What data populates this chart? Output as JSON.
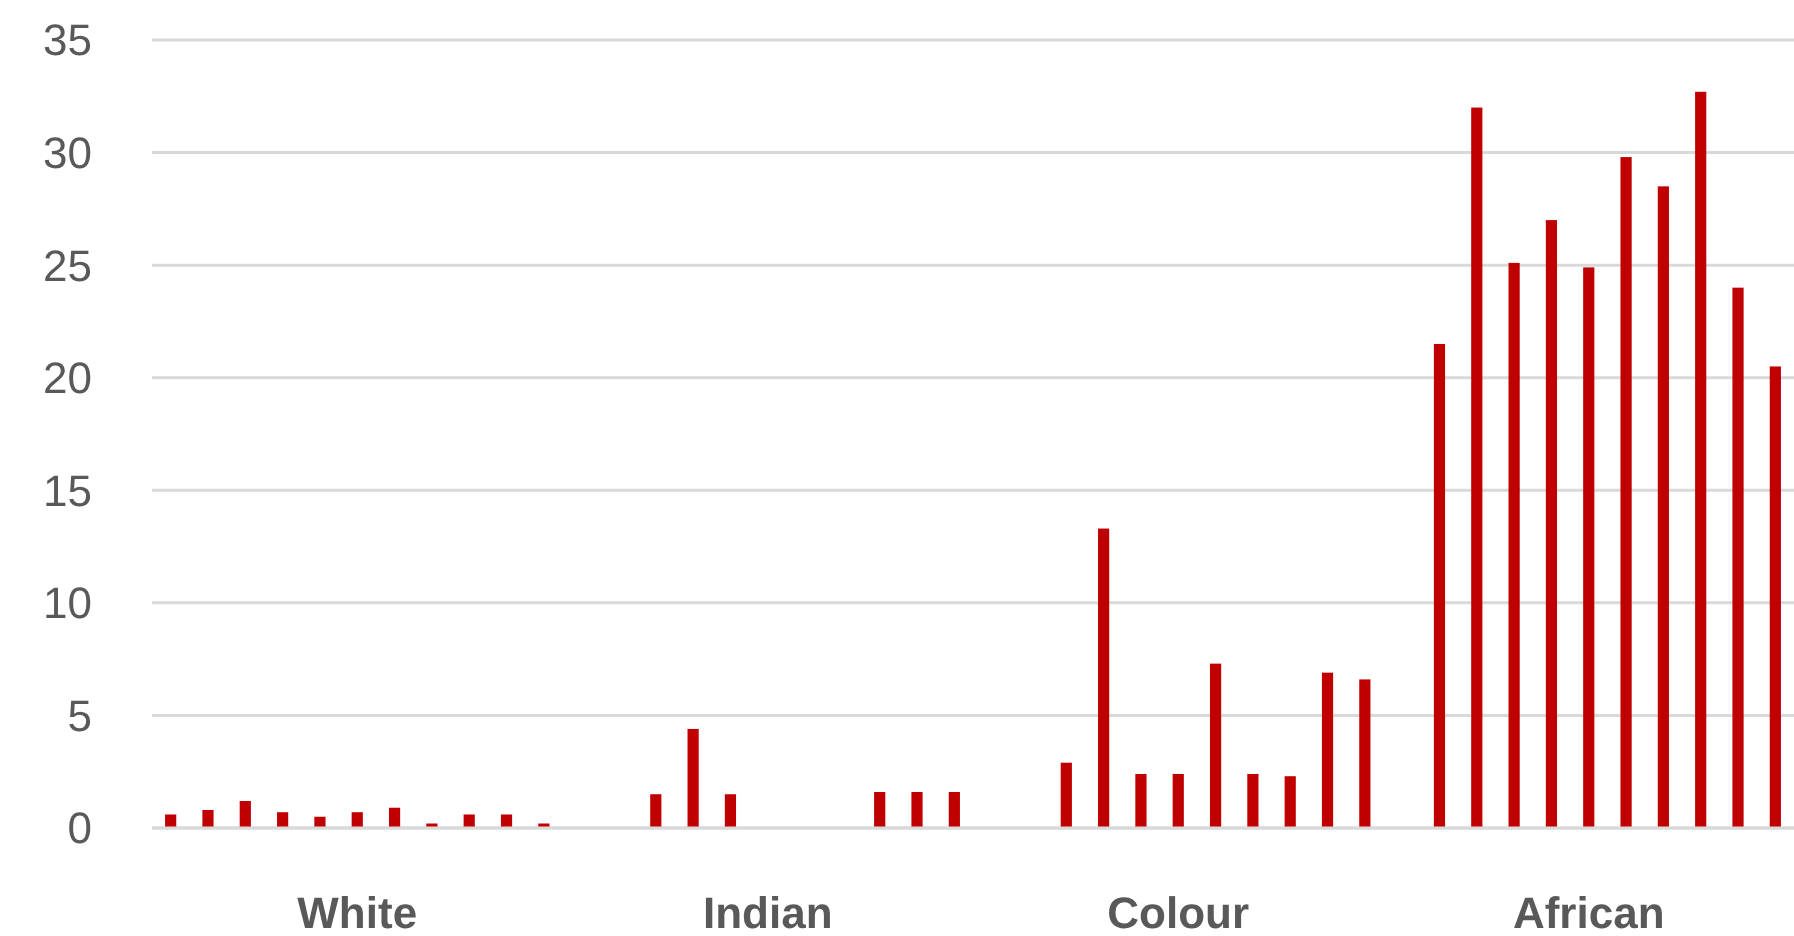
{
  "chart_data": {
    "type": "bar",
    "categories": [
      "White",
      "Indian",
      "Colour",
      "African"
    ],
    "series": [
      {
        "color": "#c00000",
        "values": [
          0.6,
          null,
          null,
          null
        ]
      },
      {
        "color": "#c00000",
        "values": [
          0.8,
          null,
          null,
          21.5
        ]
      },
      {
        "color": "#c00000",
        "values": [
          1.2,
          1.5,
          2.9,
          32
        ]
      },
      {
        "color": "#c00000",
        "values": [
          0.7,
          4.4,
          13.3,
          25.1
        ]
      },
      {
        "color": "#c00000",
        "values": [
          0.5,
          1.5,
          2.4,
          27
        ]
      },
      {
        "color": "#c00000",
        "values": [
          0.7,
          null,
          2.4,
          24.9
        ]
      },
      {
        "color": "#c00000",
        "values": [
          0.9,
          null,
          7.3,
          29.8
        ]
      },
      {
        "color": "#c00000",
        "values": [
          0.2,
          null,
          2.4,
          28.5
        ]
      },
      {
        "color": "#c00000",
        "values": [
          0.6,
          1.6,
          2.3,
          32.7
        ]
      },
      {
        "color": "#c00000",
        "values": [
          0.6,
          1.6,
          6.9,
          24.0
        ]
      },
      {
        "color": "#c00000",
        "values": [
          0.2,
          1.6,
          6.6,
          20.5
        ]
      }
    ],
    "ylim": [
      0,
      35
    ],
    "yticks": [
      0,
      5,
      10,
      15,
      20,
      25,
      30,
      35
    ],
    "grid": "y"
  }
}
